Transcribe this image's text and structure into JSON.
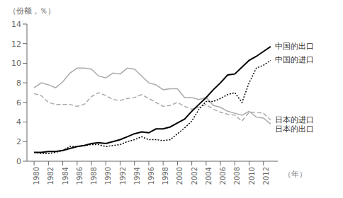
{
  "chart_data": {
    "type": "line",
    "xlabel": "（年）",
    "ylabel": "（份额，％）",
    "x": [
      1980,
      1981,
      1982,
      1983,
      1984,
      1985,
      1986,
      1987,
      1988,
      1989,
      1990,
      1991,
      1992,
      1993,
      1994,
      1995,
      1996,
      1997,
      1998,
      1999,
      2000,
      2001,
      2002,
      2003,
      2004,
      2005,
      2006,
      2007,
      2008,
      2009,
      2010,
      2011,
      2012,
      2013
    ],
    "xlim": [
      1979,
      2014
    ],
    "xticks": [
      1980,
      1982,
      1984,
      1986,
      1988,
      1990,
      1992,
      1994,
      1996,
      1998,
      2000,
      2002,
      2004,
      2006,
      2008,
      2010,
      2012
    ],
    "ylim": [
      0,
      14
    ],
    "yticks": [
      0,
      2,
      4,
      6,
      8,
      10,
      12,
      14
    ],
    "grid": false,
    "series": [
      {
        "name": "日本的出口",
        "color": "#aaaaaa",
        "line_style": "solid",
        "values": [
          7.5,
          8.0,
          7.8,
          7.5,
          8.1,
          9.0,
          9.5,
          9.5,
          9.4,
          8.7,
          8.5,
          9.0,
          8.9,
          9.5,
          9.4,
          8.7,
          8.0,
          7.8,
          7.3,
          7.4,
          7.4,
          6.5,
          6.5,
          6.3,
          6.5,
          5.7,
          5.5,
          5.1,
          4.9,
          4.7,
          5.1,
          4.5,
          4.4,
          3.8
        ]
      },
      {
        "name": "日本的进口",
        "color": "#aaaaaa",
        "line_style": "dashed",
        "values": [
          6.9,
          6.7,
          6.0,
          5.8,
          5.8,
          5.8,
          5.6,
          5.8,
          6.6,
          7.0,
          6.7,
          6.3,
          6.2,
          6.4,
          6.5,
          6.8,
          6.4,
          6.0,
          5.6,
          5.7,
          6.0,
          5.6,
          5.3,
          5.5,
          5.8,
          5.3,
          5.0,
          4.8,
          4.7,
          4.1,
          5.0,
          5.0,
          4.9,
          4.2
        ]
      },
      {
        "name": "中国的进口",
        "color": "#000000",
        "line_style": "dotted",
        "values": [
          0.9,
          0.8,
          0.8,
          0.9,
          1.1,
          1.5,
          1.5,
          1.6,
          1.7,
          1.7,
          1.5,
          1.6,
          1.7,
          2.0,
          2.2,
          2.5,
          2.2,
          2.2,
          2.1,
          2.2,
          2.8,
          3.4,
          4.1,
          5.3,
          6.1,
          6.1,
          6.4,
          6.8,
          7.0,
          6.0,
          8.0,
          9.5,
          9.8,
          10.3
        ]
      },
      {
        "name": "中国的出口",
        "color": "#000000",
        "line_style": "solid",
        "values": [
          0.9,
          0.9,
          1.0,
          1.0,
          1.1,
          1.3,
          1.5,
          1.6,
          1.8,
          1.9,
          1.8,
          2.0,
          2.2,
          2.5,
          2.8,
          3.0,
          2.9,
          3.3,
          3.3,
          3.5,
          3.9,
          4.3,
          5.1,
          5.8,
          6.5,
          7.3,
          8.0,
          8.8,
          8.9,
          9.6,
          10.3,
          10.7,
          11.2,
          11.7
        ]
      }
    ]
  }
}
